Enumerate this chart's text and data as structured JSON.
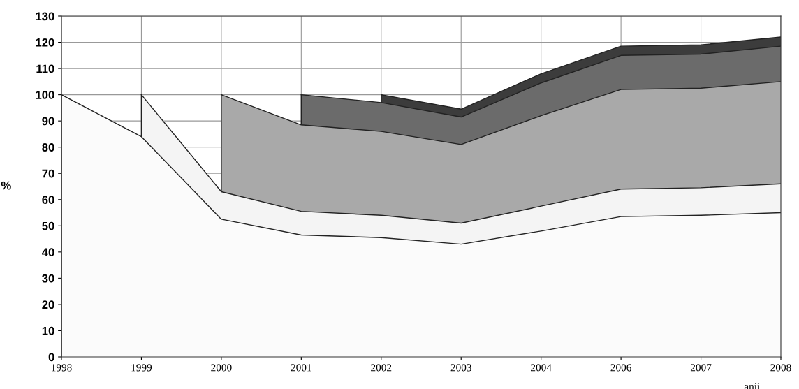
{
  "chart_data": {
    "type": "area",
    "ylabel": "%",
    "xlabel": "anii",
    "categories": [
      "1998",
      "1999",
      "2000",
      "2001",
      "2002",
      "2003",
      "2004",
      "2006",
      "2007",
      "2008"
    ],
    "series": [
      {
        "color": "#fbfbfb",
        "values": [
          100,
          84,
          52.5,
          46.5,
          45.5,
          43,
          48,
          53.5,
          54,
          55
        ]
      },
      {
        "color": "#f4f4f4",
        "values": [
          null,
          100,
          63,
          55.5,
          54,
          51,
          57.5,
          64,
          64.5,
          66
        ]
      },
      {
        "color": "#a9a9a9",
        "values": [
          null,
          null,
          100,
          88.5,
          86,
          81,
          92,
          102,
          102.5,
          105
        ]
      },
      {
        "color": "#6b6b6b",
        "values": [
          null,
          null,
          null,
          100,
          97,
          91.5,
          104.5,
          115,
          115.5,
          118.5
        ]
      },
      {
        "color": "#3c3c3c",
        "values": [
          null,
          null,
          null,
          null,
          100,
          94.5,
          108,
          118.5,
          119,
          122
        ]
      }
    ],
    "ylim": [
      0,
      130
    ],
    "yticks": [
      0,
      10,
      20,
      30,
      40,
      50,
      60,
      70,
      80,
      90,
      100,
      110,
      120,
      130
    ],
    "grid": true
  }
}
